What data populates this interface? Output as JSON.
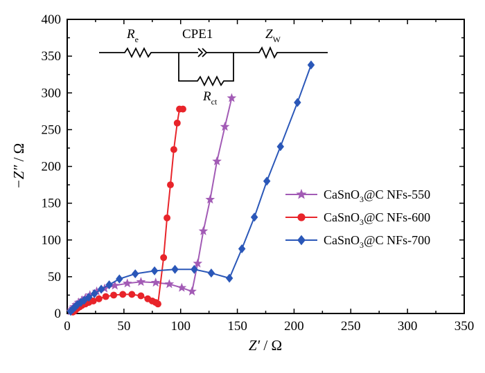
{
  "chart_data": {
    "type": "scatter",
    "xlabel": {
      "var": "Z′",
      "unit": " / Ω"
    },
    "ylabel": {
      "var": "−Z″",
      "unit": " / Ω"
    },
    "xlim": [
      0,
      350
    ],
    "ylim": [
      0,
      400
    ],
    "xticks": [
      0,
      50,
      100,
      150,
      200,
      250,
      300,
      350
    ],
    "yticks": [
      0,
      50,
      100,
      150,
      200,
      250,
      300,
      350,
      400
    ],
    "legend_position": "center-right",
    "series": [
      {
        "name": "CaSnO3@C NFs-550",
        "name_parts": [
          "CaSnO",
          "3",
          "@C NFs-550"
        ],
        "color": "#a25bb5",
        "marker": "star",
        "x": [
          3,
          4,
          5,
          6,
          8,
          10,
          13,
          16,
          20,
          26,
          33,
          42,
          53,
          65,
          78,
          90,
          101,
          110,
          115,
          120,
          126,
          132,
          139,
          145
        ],
        "y": [
          3,
          5,
          7,
          9,
          12,
          15,
          18,
          21,
          25,
          30,
          34,
          38,
          41,
          43,
          42,
          40,
          35,
          30,
          68,
          112,
          155,
          207,
          254,
          293
        ]
      },
      {
        "name": "CaSnO3@C NFs-600",
        "name_parts": [
          "CaSnO",
          "3",
          "@C NFs-600"
        ],
        "color": "#e8242a",
        "marker": "circle",
        "x": [
          5,
          6,
          7,
          8,
          9,
          11,
          13,
          16,
          19,
          23,
          28,
          34,
          41,
          49,
          57,
          65,
          71,
          75,
          78,
          80,
          85,
          88,
          91,
          94,
          97,
          99,
          102
        ],
        "y": [
          2,
          3,
          4,
          6,
          7,
          9,
          11,
          13,
          15,
          17,
          20,
          23,
          25,
          26,
          26,
          24,
          20,
          17,
          15,
          13,
          76,
          130,
          175,
          223,
          259,
          278,
          278
        ]
      },
      {
        "name": "CaSnO3@C NFs-700",
        "name_parts": [
          "CaSnO",
          "3",
          "@C NFs-700"
        ],
        "color": "#2a57b8",
        "marker": "diamond",
        "x": [
          3,
          5,
          7,
          9,
          12,
          15,
          19,
          24,
          30,
          37,
          46,
          60,
          77,
          95,
          112,
          127,
          143,
          154,
          165,
          176,
          188,
          203,
          215
        ],
        "y": [
          3,
          6,
          9,
          12,
          15,
          18,
          22,
          27,
          33,
          39,
          47,
          54,
          58,
          60,
          60,
          55,
          48,
          88,
          131,
          180,
          227,
          287,
          338
        ]
      }
    ]
  },
  "circuit": {
    "re_main": "R",
    "re_sub": "e",
    "cpe_label": "CPE1",
    "zw_main": "Z",
    "zw_sub": "W",
    "rct_main": "R",
    "rct_sub": "ct"
  }
}
